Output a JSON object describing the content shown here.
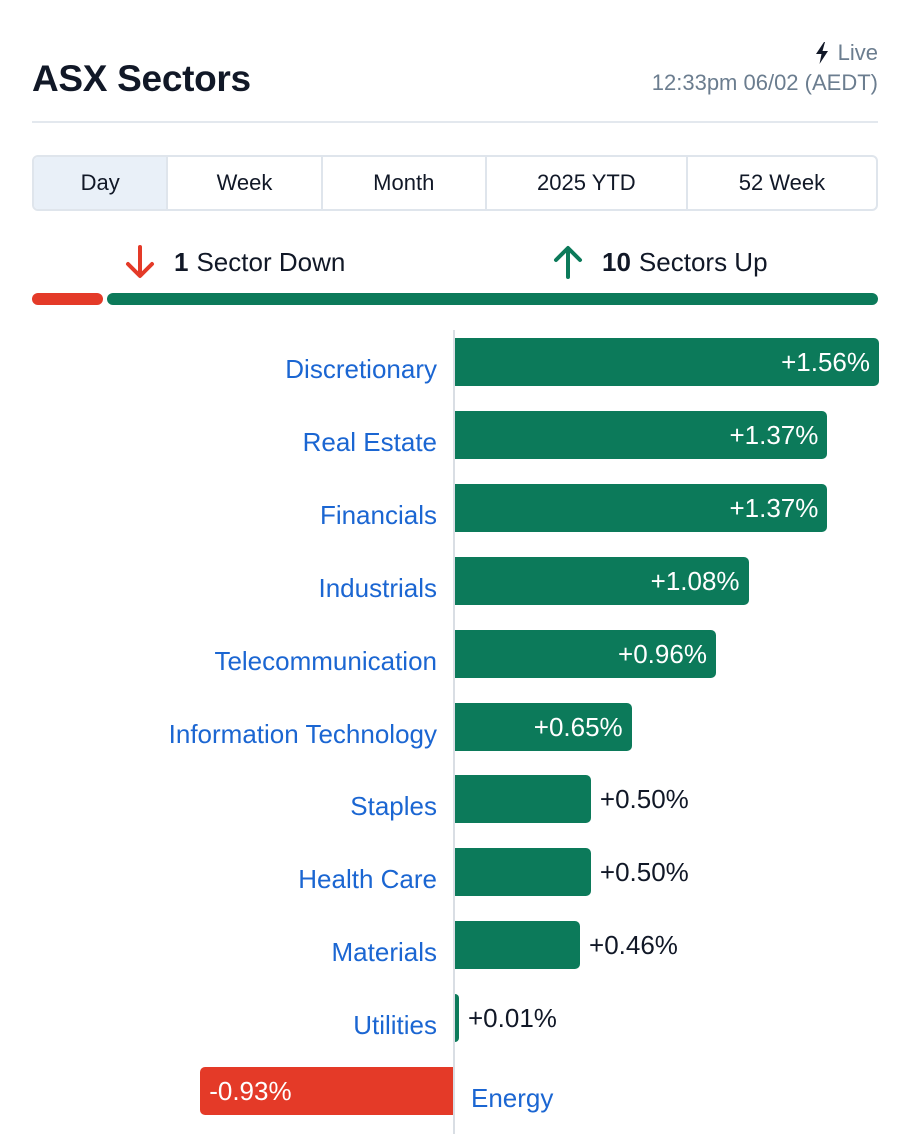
{
  "header": {
    "title": "ASX Sectors",
    "live_label": "Live",
    "timestamp": "12:33pm 06/02 (AEDT)"
  },
  "tabs": [
    {
      "label": "Day",
      "active": true
    },
    {
      "label": "Week",
      "active": false
    },
    {
      "label": "Month",
      "active": false
    },
    {
      "label": "2025 YTD",
      "active": false
    },
    {
      "label": "52 Week",
      "active": false
    }
  ],
  "summary": {
    "down_count": "1",
    "down_label": "Sector Down",
    "up_count": "10",
    "up_label": "Sectors Up"
  },
  "colors": {
    "positive": "#0c7a5a",
    "negative": "#e43a28",
    "label": "#1b66d2"
  },
  "chart_data": {
    "type": "bar",
    "orientation": "horizontal",
    "categories": [
      "Discretionary",
      "Real Estate",
      "Financials",
      "Industrials",
      "Telecommunication",
      "Information Technology",
      "Staples",
      "Health Care",
      "Materials",
      "Utilities",
      "Energy"
    ],
    "values": [
      1.56,
      1.37,
      1.37,
      1.08,
      0.96,
      0.65,
      0.5,
      0.5,
      0.46,
      0.01,
      -0.93
    ],
    "value_labels": [
      "+1.56%",
      "+1.37%",
      "+1.37%",
      "+1.08%",
      "+0.96%",
      "+0.65%",
      "+0.50%",
      "+0.50%",
      "+0.46%",
      "+0.01%",
      "-0.93%"
    ]
  }
}
